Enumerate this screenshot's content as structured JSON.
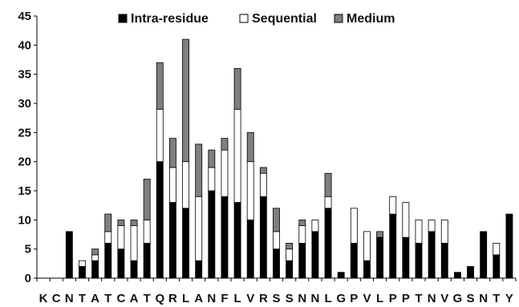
{
  "chart_data": {
    "type": "bar",
    "stacked": true,
    "categories": [
      "K",
      "C",
      "N",
      "T",
      "A",
      "T",
      "C",
      "A",
      "T",
      "Q",
      "R",
      "L",
      "A",
      "N",
      "F",
      "L",
      "V",
      "R",
      "S",
      "S",
      "N",
      "N",
      "L",
      "G",
      "P",
      "V",
      "L",
      "P",
      "P",
      "T",
      "N",
      "V",
      "G",
      "S",
      "N",
      "T",
      "Y"
    ],
    "series": [
      {
        "name": "Intra-residue",
        "color": "#000000",
        "values": [
          0,
          0,
          8,
          2,
          3,
          6,
          5,
          3,
          6,
          20,
          13,
          12,
          3,
          15,
          14,
          13,
          10,
          14,
          5,
          3,
          6,
          8,
          12,
          1,
          6,
          3,
          7,
          11,
          7,
          6,
          8,
          6,
          1,
          2,
          8,
          4,
          11
        ]
      },
      {
        "name": "Sequential",
        "color": "#ffffff",
        "values": [
          0,
          0,
          0,
          1,
          1,
          2,
          4,
          6,
          4,
          9,
          6,
          8,
          11,
          4,
          8,
          16,
          10,
          4,
          3,
          2,
          3,
          2,
          2,
          0,
          6,
          5,
          0,
          3,
          6,
          4,
          2,
          4,
          0,
          0,
          0,
          2,
          0
        ]
      },
      {
        "name": "Medium",
        "color": "#7f7f7f",
        "values": [
          0,
          0,
          0,
          0,
          1,
          3,
          1,
          1,
          7,
          8,
          5,
          21,
          9,
          3,
          2,
          7,
          5,
          1,
          4,
          1,
          1,
          0,
          4,
          0,
          0,
          0,
          1,
          0,
          0,
          0,
          0,
          0,
          0,
          0,
          0,
          0,
          0
        ]
      }
    ],
    "ylim": [
      0,
      45
    ],
    "yticks": [
      0,
      5,
      10,
      15,
      20,
      25,
      30,
      35,
      40,
      45
    ],
    "legend": "top",
    "grid": false
  }
}
